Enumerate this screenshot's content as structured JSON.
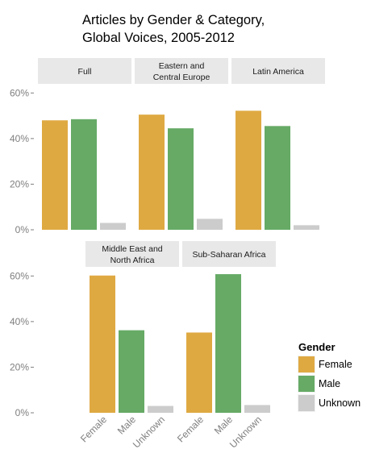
{
  "chart_data": {
    "type": "bar",
    "title": "Articles by Gender & Category, Global Voices, 2005-2012",
    "title_lines": [
      "Articles by Gender & Category,",
      "Global Voices, 2005-2012"
    ],
    "categories": [
      "Female",
      "Male",
      "Unknown"
    ],
    "y_ticks": [
      "0%",
      "20%",
      "40%",
      "60%"
    ],
    "ylim": [
      0,
      0.64
    ],
    "grid": false,
    "legend": {
      "title": "Gender",
      "placement": "right",
      "entries": [
        {
          "label": "Female",
          "color": "#dfa942"
        },
        {
          "label": "Male",
          "color": "#66aa66"
        },
        {
          "label": "Unknown",
          "color": "#cccccc"
        }
      ]
    },
    "panels": [
      {
        "label_lines": [
          "Full"
        ],
        "values": [
          0.48,
          0.485,
          0.03
        ]
      },
      {
        "label_lines": [
          "Eastern and",
          "Central Europe"
        ],
        "values": [
          0.505,
          0.445,
          0.048
        ]
      },
      {
        "label_lines": [
          "Latin America"
        ],
        "values": [
          0.522,
          0.455,
          0.02
        ]
      },
      {
        "label_lines": [
          "Middle East and",
          "North Africa"
        ],
        "values": [
          0.602,
          0.362,
          0.03
        ]
      },
      {
        "label_lines": [
          "Sub-Saharan Africa"
        ],
        "values": [
          0.352,
          0.608,
          0.034
        ]
      }
    ]
  }
}
